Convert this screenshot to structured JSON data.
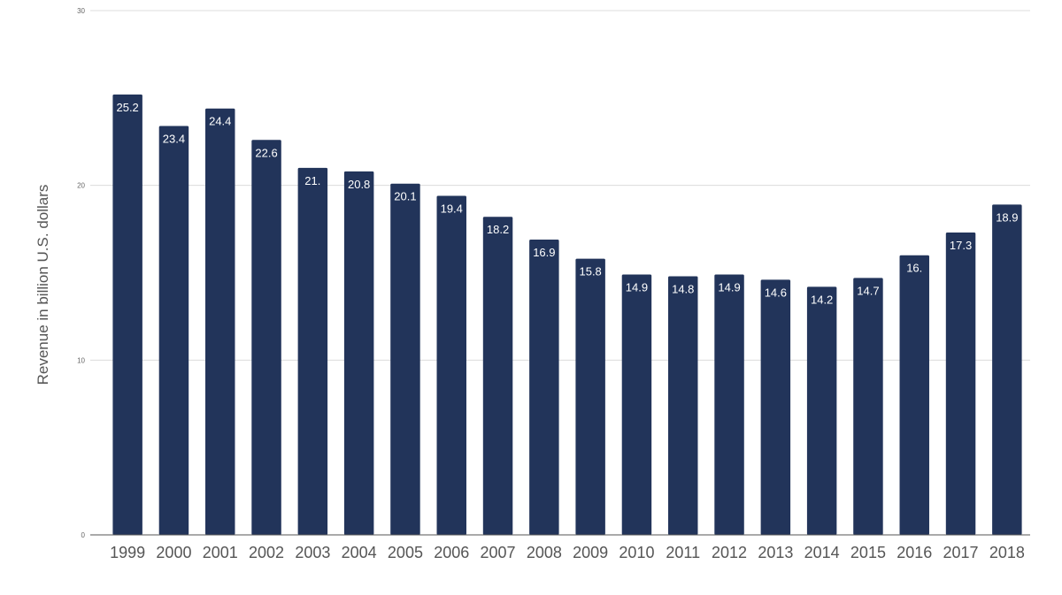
{
  "chart_data": {
    "type": "bar",
    "title": "",
    "xlabel": "",
    "ylabel": "Revenue in billion U.S. dollars",
    "ylim": [
      0,
      30
    ],
    "yticks": [
      "0",
      "10",
      "20",
      "30"
    ],
    "grid": true,
    "bar_color": "#22345a",
    "categories": [
      "1999",
      "2000",
      "2001",
      "2002",
      "2003",
      "2004",
      "2005",
      "2006",
      "2007",
      "2008",
      "2009",
      "2010",
      "2011",
      "2012",
      "2013",
      "2014",
      "2015",
      "2016",
      "2017",
      "2018"
    ],
    "values": [
      25.2,
      23.4,
      24.4,
      22.6,
      21.0,
      20.8,
      20.1,
      19.4,
      18.2,
      16.9,
      15.8,
      14.9,
      14.8,
      14.9,
      14.6,
      14.2,
      14.7,
      16.0,
      17.3,
      18.9
    ],
    "data_labels": [
      "25.2",
      "23.4",
      "24.4",
      "22.6",
      "21.",
      "20.8",
      "20.1",
      "19.4",
      "18.2",
      "16.9",
      "15.8",
      "14.9",
      "14.8",
      "14.9",
      "14.6",
      "14.2",
      "14.7",
      "16.",
      "17.3",
      "18.9"
    ]
  }
}
